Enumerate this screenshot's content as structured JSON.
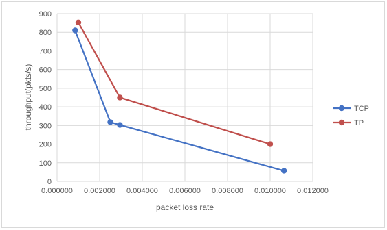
{
  "chart_data": {
    "type": "scatter",
    "xlabel": "packet loss rate",
    "ylabel": "throughput(pkts/s)",
    "xlim": [
      0,
      0.012
    ],
    "ylim": [
      0,
      900
    ],
    "x_ticks": [
      "0.000000",
      "0.002000",
      "0.004000",
      "0.006000",
      "0.008000",
      "0.010000",
      "0.012000"
    ],
    "y_ticks": [
      "0",
      "100",
      "200",
      "300",
      "400",
      "500",
      "600",
      "700",
      "800",
      "900"
    ],
    "x_tick_values": [
      0,
      0.002,
      0.004,
      0.006,
      0.008,
      0.01,
      0.012
    ],
    "y_tick_values": [
      0,
      100,
      200,
      300,
      400,
      500,
      600,
      700,
      800,
      900
    ],
    "grid": "vertical and horizontal major gridlines",
    "legend_position": "right",
    "series": [
      {
        "name": "TCP",
        "color": "#4472c4",
        "points": [
          {
            "x": 0.00085,
            "y": 810
          },
          {
            "x": 0.0025,
            "y": 318
          },
          {
            "x": 0.00295,
            "y": 303
          },
          {
            "x": 0.01065,
            "y": 57
          }
        ]
      },
      {
        "name": "TP",
        "color": "#c0504d",
        "points": [
          {
            "x": 0.001,
            "y": 853
          },
          {
            "x": 0.00295,
            "y": 450
          },
          {
            "x": 0.01,
            "y": 200
          }
        ]
      }
    ]
  }
}
